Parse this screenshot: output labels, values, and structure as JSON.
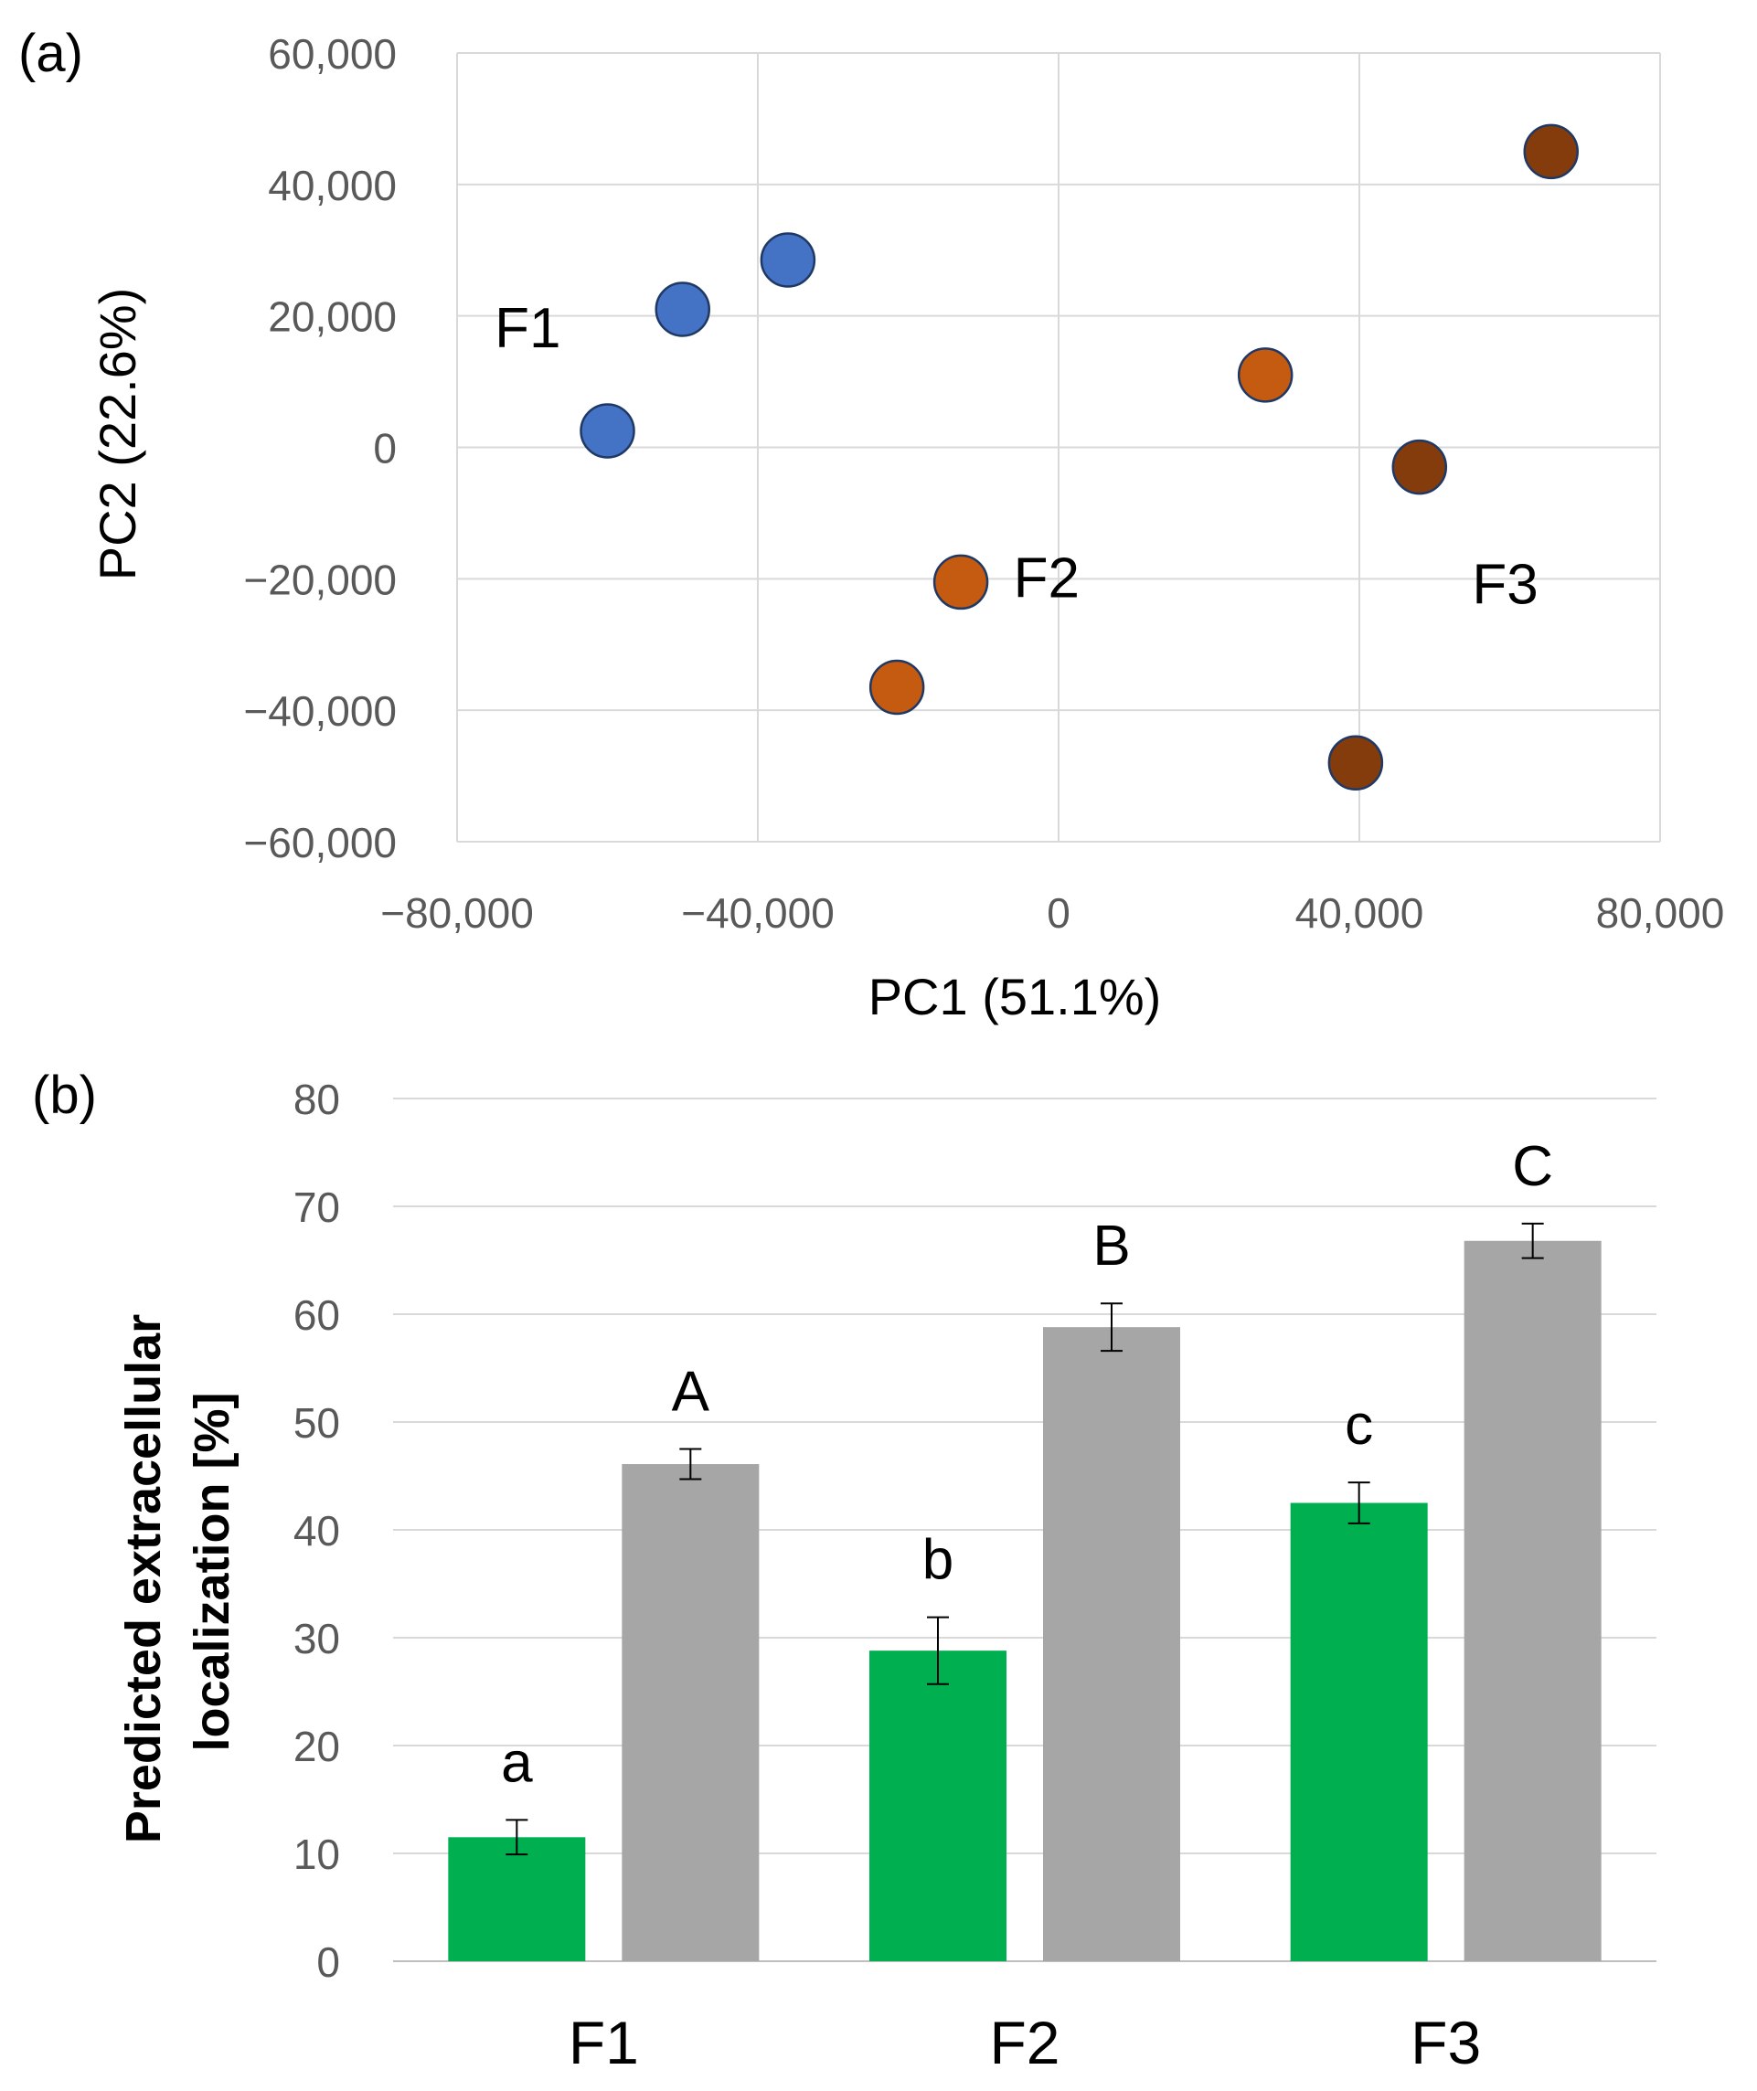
{
  "chart_data": [
    {
      "panel_label": "(a)",
      "type": "scatter",
      "xlabel": "PC1 (51.1%)",
      "ylabel": "PC2 (22.6%)",
      "xlim": [
        -80000,
        80000
      ],
      "ylim": [
        -60000,
        60000
      ],
      "x_ticks": [
        -80000,
        -40000,
        0,
        40000,
        80000
      ],
      "x_tick_labels": [
        "−80,000",
        "−40,000",
        "0",
        "40,000",
        "80,000"
      ],
      "y_ticks": [
        60000,
        40000,
        20000,
        0,
        -20000,
        -40000,
        -60000
      ],
      "y_tick_labels": [
        "60,000",
        "40,000",
        "20,000",
        "0",
        "−20,000",
        "−40,000",
        "−60,000"
      ],
      "grid": true,
      "series": [
        {
          "name": "F1",
          "color": "#4472C4",
          "points": [
            [
              -60000,
              2500
            ],
            [
              -50000,
              21000
            ],
            [
              -36000,
              28500
            ]
          ]
        },
        {
          "name": "F2",
          "color": "#C55A11",
          "points": [
            [
              -13000,
              -20500
            ],
            [
              -21500,
              -36500
            ],
            [
              27500,
              11000
            ]
          ]
        },
        {
          "name": "F3",
          "color": "#843C0C",
          "points": [
            [
              65500,
              45000
            ],
            [
              48000,
              -3000
            ],
            [
              39500,
              -48000
            ]
          ]
        }
      ],
      "annotations": [
        {
          "text": "F1",
          "x": -75000,
          "y": 18000
        },
        {
          "text": "F2",
          "x": -6000,
          "y": -20000
        },
        {
          "text": "F3",
          "x": 55000,
          "y": -21000
        }
      ]
    },
    {
      "panel_label": "(b)",
      "type": "bar",
      "ylabel_lines": [
        "Predicted extracellular",
        "localization [%]"
      ],
      "ylim": [
        0,
        80
      ],
      "y_ticks": [
        0,
        10,
        20,
        30,
        40,
        50,
        60,
        70,
        80
      ],
      "grid": true,
      "categories": [
        "F1",
        "F2",
        "F3"
      ],
      "series": [
        {
          "name": "green",
          "color": "#00B050",
          "values": [
            11.5,
            28.8,
            42.5
          ],
          "errors": [
            1.6,
            3.1,
            1.9
          ],
          "letters": [
            "a",
            "b",
            "c"
          ]
        },
        {
          "name": "gray",
          "color": "#A6A6A6",
          "values": [
            46.1,
            58.8,
            66.8
          ],
          "errors": [
            1.4,
            2.2,
            1.6
          ],
          "letters": [
            "A",
            "B",
            "C"
          ]
        }
      ]
    }
  ]
}
